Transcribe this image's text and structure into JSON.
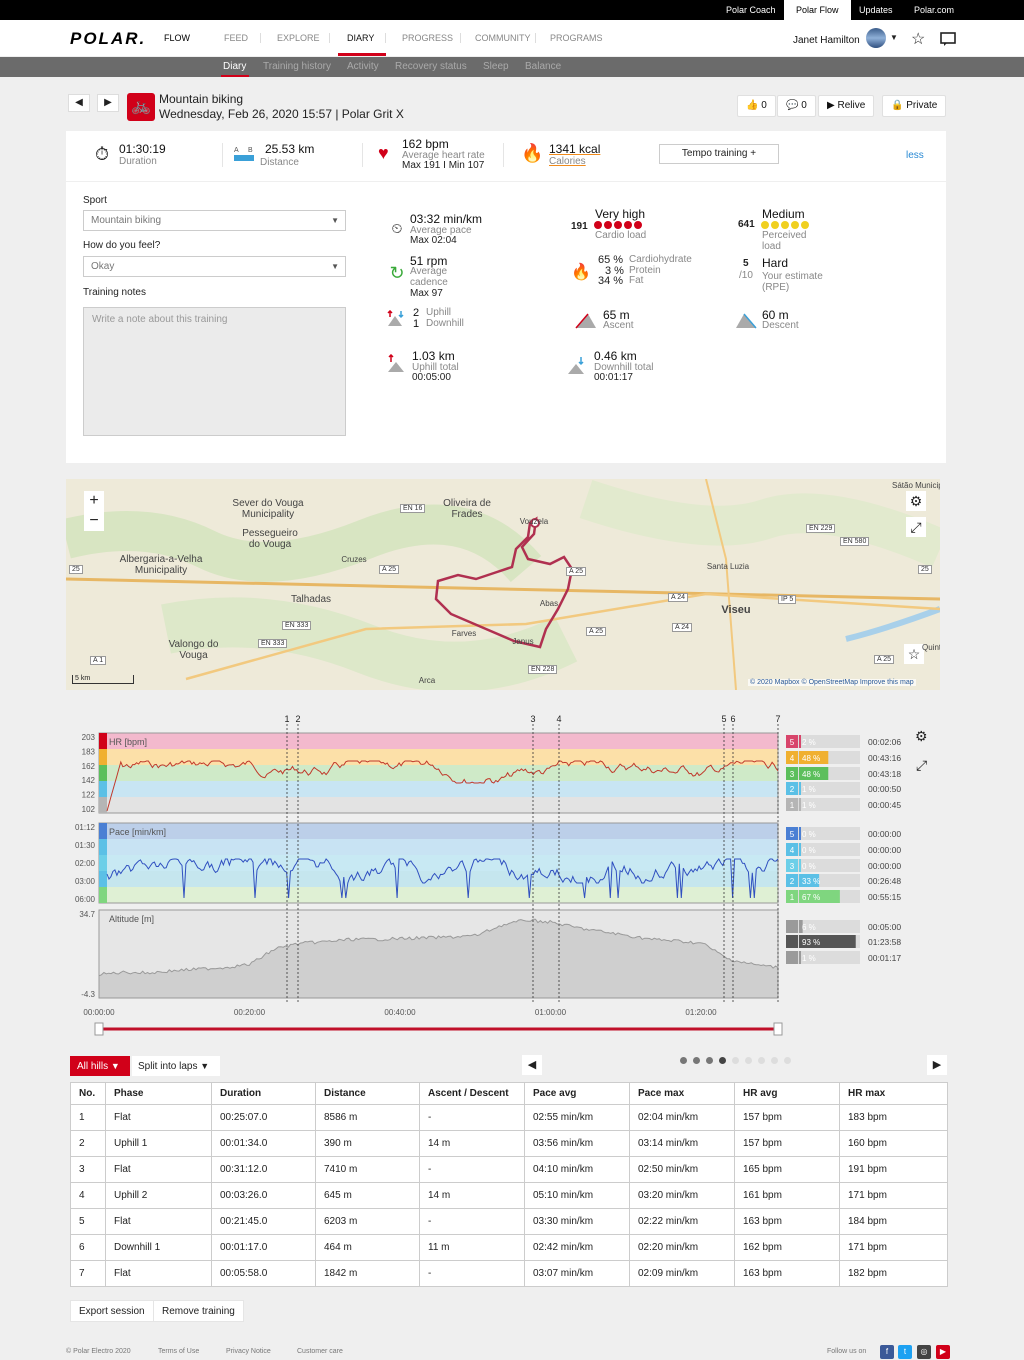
{
  "topbar": {
    "links": [
      "Polar Coach",
      "Polar Flow",
      "Updates",
      "Polar.com"
    ]
  },
  "header": {
    "logo": "POLAR.",
    "product": "FLOW",
    "nav": [
      "FEED",
      "EXPLORE",
      "DIARY",
      "PROGRESS",
      "COMMUNITY",
      "PROGRAMS"
    ],
    "user": "Janet Hamilton"
  },
  "subnav": [
    "Diary",
    "Training history",
    "Activity",
    "Recovery status",
    "Sleep",
    "Balance"
  ],
  "activity": {
    "title": "Mountain biking",
    "subtitle": "Wednesday, Feb 26, 2020 15:57 | Polar Grit X",
    "likes": "0",
    "comments": "0",
    "relive": "Relive",
    "privacy": "Private"
  },
  "summary": {
    "duration": "01:30:19",
    "duration_label": "Duration",
    "distance": "25.53 km",
    "distance_label": "Distance",
    "hr": "162 bpm",
    "hr_label": "Average heart rate",
    "hr_sub": "Max 191 I Min 107",
    "calories": "1341 kcal",
    "calories_label": "Calories",
    "tempo": "Tempo training +",
    "less": "less"
  },
  "form": {
    "sport_label": "Sport",
    "sport_value": "Mountain biking",
    "feel_label": "How do you feel?",
    "feel_value": "Okay",
    "notes_label": "Training notes",
    "notes_placeholder": "Write a note about this training"
  },
  "metrics": {
    "pace": "03:32 min/km",
    "pace_label": "Average pace",
    "pace_max": "Max 02:04",
    "cadence": "51 rpm",
    "cadence_label1": "Average",
    "cadence_label2": "cadence",
    "cadence_max": "Max 97",
    "uphill_count": "2",
    "uphill_label": "Uphill",
    "downhill_count": "1",
    "downhill_label": "Downhill",
    "uphill_total": "1.03 km",
    "uphill_total_label": "Uphill total",
    "uphill_time": "00:05:00",
    "cardio_num": "191",
    "cardio_val": "Very high",
    "cardio_label": "Cardio load",
    "carb_pct": "65 %",
    "carb_label": "Cardiohydrate",
    "protein_pct": "3 %",
    "protein_label": "Protein",
    "fat_pct": "34 %",
    "fat_label": "Fat",
    "ascent": "65 m",
    "ascent_label": "Ascent",
    "downhill_total": "0.46 km",
    "downhill_total_label": "Downhill total",
    "downhill_time": "00:01:17",
    "perceived_num": "641",
    "perceived_val": "Medium",
    "perceived_label1": "Perceived",
    "perceived_label2": "load",
    "rpe_num": "5",
    "rpe_den": "/10",
    "rpe_val": "Hard",
    "rpe_label1": "Your estimate",
    "rpe_label2": "(RPE)",
    "descent": "60 m",
    "descent_label": "Descent"
  },
  "map": {
    "labels": [
      "Sever do Vouga Municipality",
      "Pessegueiro do Vouga",
      "Oliveira de Frades",
      "Albergaria-a-Velha Municipality",
      "Talhadas",
      "Cruzes",
      "Valongo do Vouga",
      "Vouzela",
      "Santa Luzia",
      "Viseu",
      "Abas",
      "Farves",
      "Janus",
      "Arca",
      "Sátão Municipality",
      "Quinta"
    ],
    "roads": [
      "EN 16",
      "A 25",
      "EN 333",
      "EN 333",
      "A 1",
      "EN 228",
      "A 25",
      "A 24",
      "A 24",
      "IP 5",
      "EN 229",
      "EN 580",
      "A 25",
      "A 25",
      "25",
      "25"
    ],
    "scale": "5 km",
    "attribution": "© 2020 Mapbox © OpenStreetMap Improve this map"
  },
  "chart_data": {
    "type": "line",
    "x_ticks": [
      "00:00:00",
      "00:20:00",
      "00:40:00",
      "01:00:00",
      "01:20:00"
    ],
    "lap_markers": [
      "1",
      "2",
      "3",
      "4",
      "5",
      "6",
      "7"
    ],
    "panels": [
      {
        "name": "HR [bpm]",
        "y_ticks": [
          "203",
          "183",
          "162",
          "142",
          "122",
          "102"
        ],
        "zones": [
          {
            "zone": "5",
            "pct": "2 %",
            "time": "00:02:06",
            "color": "#d8456b"
          },
          {
            "zone": "4",
            "pct": "48 %",
            "time": "00:43:16",
            "color": "#f0b030"
          },
          {
            "zone": "3",
            "pct": "48 %",
            "time": "00:43:18",
            "color": "#5cbf5c"
          },
          {
            "zone": "2",
            "pct": "1 %",
            "time": "00:00:50",
            "color": "#5bc0e6"
          },
          {
            "zone": "1",
            "pct": "1 %",
            "time": "00:00:45",
            "color": "#b5b5b5"
          }
        ]
      },
      {
        "name": "Pace [min/km]",
        "y_ticks": [
          "01:12",
          "01:30",
          "02:00",
          "03:00",
          "06:00"
        ],
        "zones": [
          {
            "zone": "5",
            "pct": "0 %",
            "time": "00:00:00",
            "color": "#4a7fd4"
          },
          {
            "zone": "4",
            "pct": "0 %",
            "time": "00:00:00",
            "color": "#5bc0e6"
          },
          {
            "zone": "3",
            "pct": "0 %",
            "time": "00:00:00",
            "color": "#6ccfe8"
          },
          {
            "zone": "2",
            "pct": "33 %",
            "time": "00:26:48",
            "color": "#5bc0e6"
          },
          {
            "zone": "1",
            "pct": "67 %",
            "time": "00:55:15",
            "color": "#7fd67f"
          }
        ]
      },
      {
        "name": "Altitude [m]",
        "y_ticks": [
          "34.7",
          "-4.3"
        ],
        "zones": [
          {
            "zone": "up",
            "pct": "6 %",
            "time": "00:05:00",
            "color": "#9a9a9a"
          },
          {
            "zone": "flat",
            "pct": "93 %",
            "time": "01:23:58",
            "color": "#555555"
          },
          {
            "zone": "down",
            "pct": "1 %",
            "time": "00:01:17",
            "color": "#9a9a9a"
          }
        ]
      }
    ]
  },
  "laps": {
    "filter": "All hills",
    "split": "Split into laps",
    "columns": [
      "No.",
      "Phase",
      "Duration",
      "Distance",
      "Ascent / Descent",
      "Pace avg",
      "Pace max",
      "HR avg",
      "HR max"
    ],
    "rows": [
      [
        "1",
        "Flat",
        "00:25:07.0",
        "8586 m",
        "-",
        "02:55 min/km",
        "02:04 min/km",
        "157 bpm",
        "183 bpm"
      ],
      [
        "2",
        "Uphill 1",
        "00:01:34.0",
        "390 m",
        "14 m",
        "03:56 min/km",
        "03:14 min/km",
        "157 bpm",
        "160 bpm"
      ],
      [
        "3",
        "Flat",
        "00:31:12.0",
        "7410 m",
        "-",
        "04:10 min/km",
        "02:50 min/km",
        "165 bpm",
        "191 bpm"
      ],
      [
        "4",
        "Uphill 2",
        "00:03:26.0",
        "645 m",
        "14 m",
        "05:10 min/km",
        "03:20 min/km",
        "161 bpm",
        "171 bpm"
      ],
      [
        "5",
        "Flat",
        "00:21:45.0",
        "6203 m",
        "-",
        "03:30 min/km",
        "02:22 min/km",
        "163 bpm",
        "184 bpm"
      ],
      [
        "6",
        "Downhill 1",
        "00:01:17.0",
        "464 m",
        "11 m",
        "02:42 min/km",
        "02:20 min/km",
        "162 bpm",
        "171 bpm"
      ],
      [
        "7",
        "Flat",
        "00:05:58.0",
        "1842 m",
        "-",
        "03:07 min/km",
        "02:09 min/km",
        "163 bpm",
        "182 bpm"
      ]
    ]
  },
  "actions": {
    "export": "Export session",
    "remove": "Remove training"
  },
  "footer": {
    "copyright": "© Polar Electro 2020",
    "links": [
      "Terms of Use",
      "Privacy Notice",
      "Customer care"
    ],
    "follow": "Follow us on"
  },
  "colors": {
    "brand_red": "#d10019",
    "link_blue": "#2a8ad4"
  }
}
